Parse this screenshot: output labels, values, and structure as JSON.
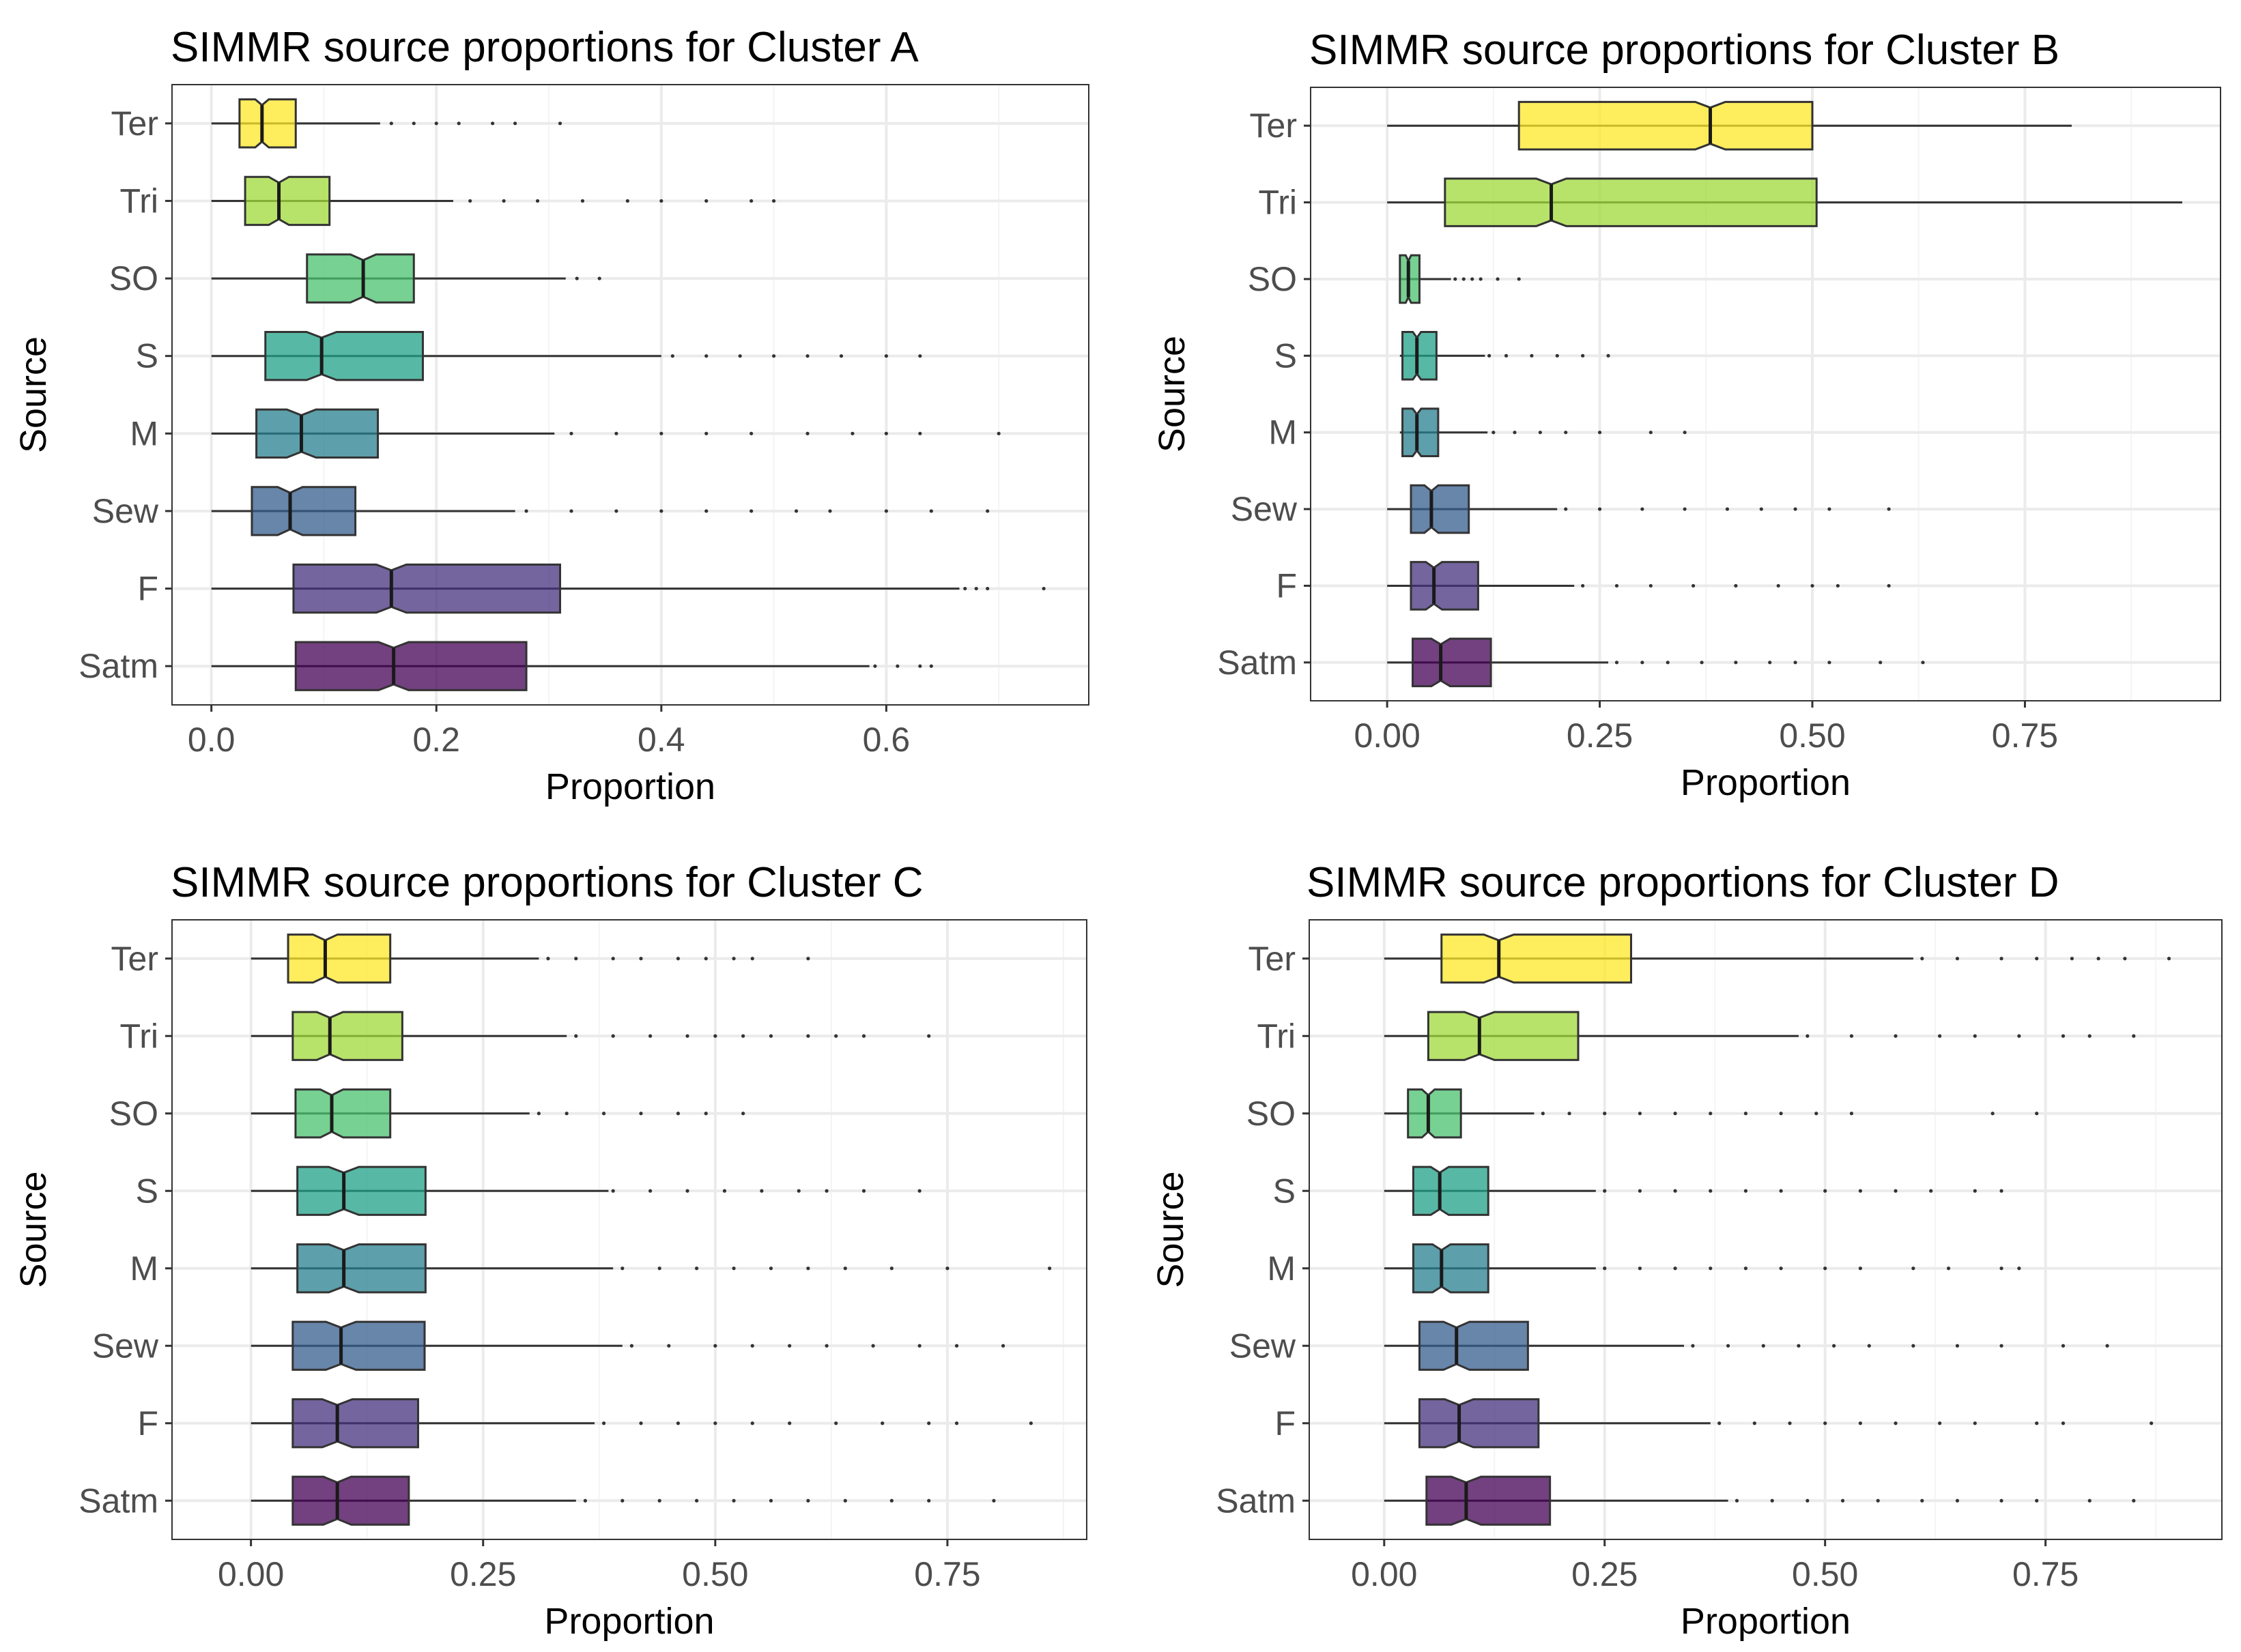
{
  "chart_data": [
    {
      "type": "boxplot",
      "orientation": "horizontal",
      "notched": true,
      "title": "SIMMR source proportions for Cluster A",
      "xlabel": "Proportion",
      "ylabel": "Source",
      "xlim": [
        -0.035,
        0.78
      ],
      "xticks": [
        0.0,
        0.2,
        0.4,
        0.6
      ],
      "xtick_labels": [
        "0.0",
        "0.2",
        "0.4",
        "0.6"
      ],
      "grid": true,
      "sources": [
        {
          "name": "Ter",
          "color": "#FDE725",
          "min": 0.0,
          "q1": 0.025,
          "median": 0.045,
          "q3": 0.075,
          "whisker_hi": 0.15,
          "outliers": [
            0.16,
            0.18,
            0.2,
            0.22,
            0.25,
            0.27,
            0.31
          ]
        },
        {
          "name": "Tri",
          "color": "#A0DA39",
          "min": 0.0,
          "q1": 0.03,
          "median": 0.06,
          "q3": 0.105,
          "whisker_hi": 0.215,
          "outliers": [
            0.23,
            0.26,
            0.29,
            0.33,
            0.37,
            0.4,
            0.44,
            0.48,
            0.5
          ]
        },
        {
          "name": "SO",
          "color": "#4AC16D",
          "min": 0.0,
          "q1": 0.085,
          "median": 0.135,
          "q3": 0.18,
          "whisker_hi": 0.315,
          "outliers": [
            0.325,
            0.345
          ]
        },
        {
          "name": "S",
          "color": "#1FA187",
          "min": 0.0,
          "q1": 0.048,
          "median": 0.098,
          "q3": 0.188,
          "whisker_hi": 0.4,
          "outliers": [
            0.41,
            0.44,
            0.47,
            0.5,
            0.53,
            0.56,
            0.6,
            0.63
          ]
        },
        {
          "name": "M",
          "color": "#277F8E",
          "min": 0.0,
          "q1": 0.04,
          "median": 0.08,
          "q3": 0.148,
          "whisker_hi": 0.305,
          "outliers": [
            0.32,
            0.36,
            0.4,
            0.44,
            0.48,
            0.53,
            0.57,
            0.6,
            0.63,
            0.7
          ]
        },
        {
          "name": "Sew",
          "color": "#365C8D",
          "min": 0.0,
          "q1": 0.036,
          "median": 0.07,
          "q3": 0.128,
          "whisker_hi": 0.27,
          "outliers": [
            0.28,
            0.32,
            0.36,
            0.4,
            0.44,
            0.48,
            0.52,
            0.55,
            0.6,
            0.64,
            0.69
          ]
        },
        {
          "name": "F",
          "color": "#46327E",
          "min": 0.0,
          "q1": 0.073,
          "median": 0.16,
          "q3": 0.31,
          "whisker_hi": 0.665,
          "outliers": [
            0.67,
            0.68,
            0.69,
            0.74
          ]
        },
        {
          "name": "Satm",
          "color": "#440154",
          "min": 0.0,
          "q1": 0.075,
          "median": 0.162,
          "q3": 0.28,
          "whisker_hi": 0.585,
          "outliers": [
            0.59,
            0.61,
            0.63,
            0.64
          ]
        }
      ]
    },
    {
      "type": "boxplot",
      "orientation": "horizontal",
      "notched": true,
      "title": "SIMMR source proportions for Cluster B",
      "xlabel": "Proportion",
      "ylabel": "Source",
      "xlim": [
        -0.09,
        0.98
      ],
      "xticks": [
        0.0,
        0.25,
        0.5,
        0.75
      ],
      "xtick_labels": [
        "0.00",
        "0.25",
        "0.50",
        "0.75"
      ],
      "grid": true,
      "sources": [
        {
          "name": "Ter",
          "color": "#FDE725",
          "min": 0.0,
          "q1": 0.155,
          "median": 0.38,
          "q3": 0.5,
          "whisker_hi": 0.805,
          "outliers": []
        },
        {
          "name": "Tri",
          "color": "#A0DA39",
          "min": 0.0,
          "q1": 0.068,
          "median": 0.193,
          "q3": 0.505,
          "whisker_hi": 0.935,
          "outliers": []
        },
        {
          "name": "SO",
          "color": "#4AC16D",
          "min": 0.015,
          "q1": 0.015,
          "median": 0.025,
          "q3": 0.038,
          "whisker_hi": 0.075,
          "outliers": [
            0.08,
            0.09,
            0.1,
            0.11,
            0.13,
            0.155
          ]
        },
        {
          "name": "S",
          "color": "#1FA187",
          "min": 0.015,
          "q1": 0.018,
          "median": 0.035,
          "q3": 0.058,
          "whisker_hi": 0.115,
          "outliers": [
            0.12,
            0.14,
            0.17,
            0.2,
            0.23,
            0.26
          ]
        },
        {
          "name": "M",
          "color": "#277F8E",
          "min": 0.015,
          "q1": 0.018,
          "median": 0.035,
          "q3": 0.06,
          "whisker_hi": 0.118,
          "outliers": [
            0.125,
            0.15,
            0.18,
            0.21,
            0.25,
            0.31,
            0.35
          ]
        },
        {
          "name": "Sew",
          "color": "#365C8D",
          "min": 0.0,
          "q1": 0.028,
          "median": 0.052,
          "q3": 0.096,
          "whisker_hi": 0.2,
          "outliers": [
            0.21,
            0.25,
            0.3,
            0.35,
            0.4,
            0.44,
            0.48,
            0.52,
            0.59
          ]
        },
        {
          "name": "F",
          "color": "#46327E",
          "min": 0.0,
          "q1": 0.028,
          "median": 0.055,
          "q3": 0.107,
          "whisker_hi": 0.22,
          "outliers": [
            0.23,
            0.27,
            0.31,
            0.36,
            0.41,
            0.46,
            0.5,
            0.53,
            0.59
          ]
        },
        {
          "name": "Satm",
          "color": "#440154",
          "min": 0.0,
          "q1": 0.03,
          "median": 0.063,
          "q3": 0.122,
          "whisker_hi": 0.26,
          "outliers": [
            0.27,
            0.3,
            0.33,
            0.37,
            0.41,
            0.45,
            0.48,
            0.52,
            0.58,
            0.63
          ]
        }
      ]
    },
    {
      "type": "boxplot",
      "orientation": "horizontal",
      "notched": true,
      "title": "SIMMR source proportions for Cluster C",
      "xlabel": "Proportion",
      "ylabel": "Source",
      "xlim": [
        -0.085,
        0.9
      ],
      "xticks": [
        0.0,
        0.25,
        0.5,
        0.75
      ],
      "xtick_labels": [
        "0.00",
        "0.25",
        "0.50",
        "0.75"
      ],
      "grid": true,
      "sources": [
        {
          "name": "Ter",
          "color": "#FDE725",
          "min": 0.0,
          "q1": 0.04,
          "median": 0.08,
          "q3": 0.15,
          "whisker_hi": 0.31,
          "outliers": [
            0.32,
            0.35,
            0.39,
            0.42,
            0.46,
            0.49,
            0.52,
            0.54,
            0.6
          ]
        },
        {
          "name": "Tri",
          "color": "#A0DA39",
          "min": 0.0,
          "q1": 0.045,
          "median": 0.085,
          "q3": 0.163,
          "whisker_hi": 0.34,
          "outliers": [
            0.35,
            0.39,
            0.43,
            0.47,
            0.5,
            0.53,
            0.56,
            0.6,
            0.63,
            0.66,
            0.73
          ]
        },
        {
          "name": "SO",
          "color": "#4AC16D",
          "min": 0.0,
          "q1": 0.048,
          "median": 0.087,
          "q3": 0.15,
          "whisker_hi": 0.3,
          "outliers": [
            0.31,
            0.34,
            0.38,
            0.42,
            0.46,
            0.49,
            0.53
          ]
        },
        {
          "name": "S",
          "color": "#1FA187",
          "min": 0.0,
          "q1": 0.05,
          "median": 0.1,
          "q3": 0.188,
          "whisker_hi": 0.385,
          "outliers": [
            0.39,
            0.43,
            0.47,
            0.51,
            0.55,
            0.59,
            0.62,
            0.66,
            0.72
          ]
        },
        {
          "name": "M",
          "color": "#277F8E",
          "min": 0.0,
          "q1": 0.05,
          "median": 0.1,
          "q3": 0.188,
          "whisker_hi": 0.39,
          "outliers": [
            0.4,
            0.44,
            0.48,
            0.52,
            0.56,
            0.6,
            0.64,
            0.69,
            0.75,
            0.86
          ]
        },
        {
          "name": "Sew",
          "color": "#365C8D",
          "min": 0.0,
          "q1": 0.045,
          "median": 0.097,
          "q3": 0.187,
          "whisker_hi": 0.4,
          "outliers": [
            0.41,
            0.45,
            0.5,
            0.54,
            0.58,
            0.62,
            0.67,
            0.72,
            0.76,
            0.81
          ]
        },
        {
          "name": "F",
          "color": "#46327E",
          "min": 0.0,
          "q1": 0.045,
          "median": 0.093,
          "q3": 0.18,
          "whisker_hi": 0.37,
          "outliers": [
            0.38,
            0.42,
            0.46,
            0.5,
            0.54,
            0.58,
            0.63,
            0.68,
            0.73,
            0.76,
            0.84
          ]
        },
        {
          "name": "Satm",
          "color": "#440154",
          "min": 0.0,
          "q1": 0.045,
          "median": 0.093,
          "q3": 0.17,
          "whisker_hi": 0.35,
          "outliers": [
            0.36,
            0.4,
            0.44,
            0.48,
            0.52,
            0.56,
            0.6,
            0.64,
            0.69,
            0.73,
            0.8
          ]
        }
      ]
    },
    {
      "type": "boxplot",
      "orientation": "horizontal",
      "notched": true,
      "title": "SIMMR source proportions for Cluster D",
      "xlabel": "Proportion",
      "ylabel": "Source",
      "xlim": [
        -0.085,
        0.95
      ],
      "xticks": [
        0.0,
        0.25,
        0.5,
        0.75
      ],
      "xtick_labels": [
        "0.00",
        "0.25",
        "0.50",
        "0.75"
      ],
      "grid": true,
      "sources": [
        {
          "name": "Ter",
          "color": "#FDE725",
          "min": 0.0,
          "q1": 0.065,
          "median": 0.13,
          "q3": 0.28,
          "whisker_hi": 0.6,
          "outliers": [
            0.61,
            0.65,
            0.7,
            0.74,
            0.78,
            0.81,
            0.84,
            0.89
          ]
        },
        {
          "name": "Tri",
          "color": "#A0DA39",
          "min": 0.0,
          "q1": 0.05,
          "median": 0.108,
          "q3": 0.22,
          "whisker_hi": 0.47,
          "outliers": [
            0.48,
            0.53,
            0.58,
            0.63,
            0.67,
            0.72,
            0.77,
            0.8,
            0.85
          ]
        },
        {
          "name": "SO",
          "color": "#4AC16D",
          "min": 0.0,
          "q1": 0.027,
          "median": 0.05,
          "q3": 0.087,
          "whisker_hi": 0.17,
          "outliers": [
            0.18,
            0.21,
            0.25,
            0.29,
            0.33,
            0.37,
            0.41,
            0.45,
            0.49,
            0.53,
            0.69,
            0.74
          ]
        },
        {
          "name": "S",
          "color": "#1FA187",
          "min": 0.0,
          "q1": 0.033,
          "median": 0.063,
          "q3": 0.118,
          "whisker_hi": 0.24,
          "outliers": [
            0.25,
            0.29,
            0.33,
            0.37,
            0.41,
            0.45,
            0.5,
            0.54,
            0.58,
            0.62,
            0.67,
            0.7
          ]
        },
        {
          "name": "M",
          "color": "#277F8E",
          "min": 0.0,
          "q1": 0.033,
          "median": 0.065,
          "q3": 0.118,
          "whisker_hi": 0.24,
          "outliers": [
            0.25,
            0.29,
            0.33,
            0.37,
            0.41,
            0.45,
            0.5,
            0.54,
            0.6,
            0.64,
            0.7,
            0.72
          ]
        },
        {
          "name": "Sew",
          "color": "#365C8D",
          "min": 0.0,
          "q1": 0.04,
          "median": 0.082,
          "q3": 0.163,
          "whisker_hi": 0.34,
          "outliers": [
            0.35,
            0.39,
            0.43,
            0.47,
            0.51,
            0.55,
            0.6,
            0.65,
            0.7,
            0.77,
            0.82
          ]
        },
        {
          "name": "F",
          "color": "#46327E",
          "min": 0.0,
          "q1": 0.04,
          "median": 0.085,
          "q3": 0.175,
          "whisker_hi": 0.37,
          "outliers": [
            0.38,
            0.42,
            0.46,
            0.5,
            0.54,
            0.58,
            0.63,
            0.67,
            0.74,
            0.77,
            0.87
          ]
        },
        {
          "name": "Satm",
          "color": "#440154",
          "min": 0.0,
          "q1": 0.048,
          "median": 0.093,
          "q3": 0.188,
          "whisker_hi": 0.39,
          "outliers": [
            0.4,
            0.44,
            0.48,
            0.52,
            0.56,
            0.61,
            0.65,
            0.7,
            0.74,
            0.8,
            0.85
          ]
        }
      ]
    }
  ]
}
